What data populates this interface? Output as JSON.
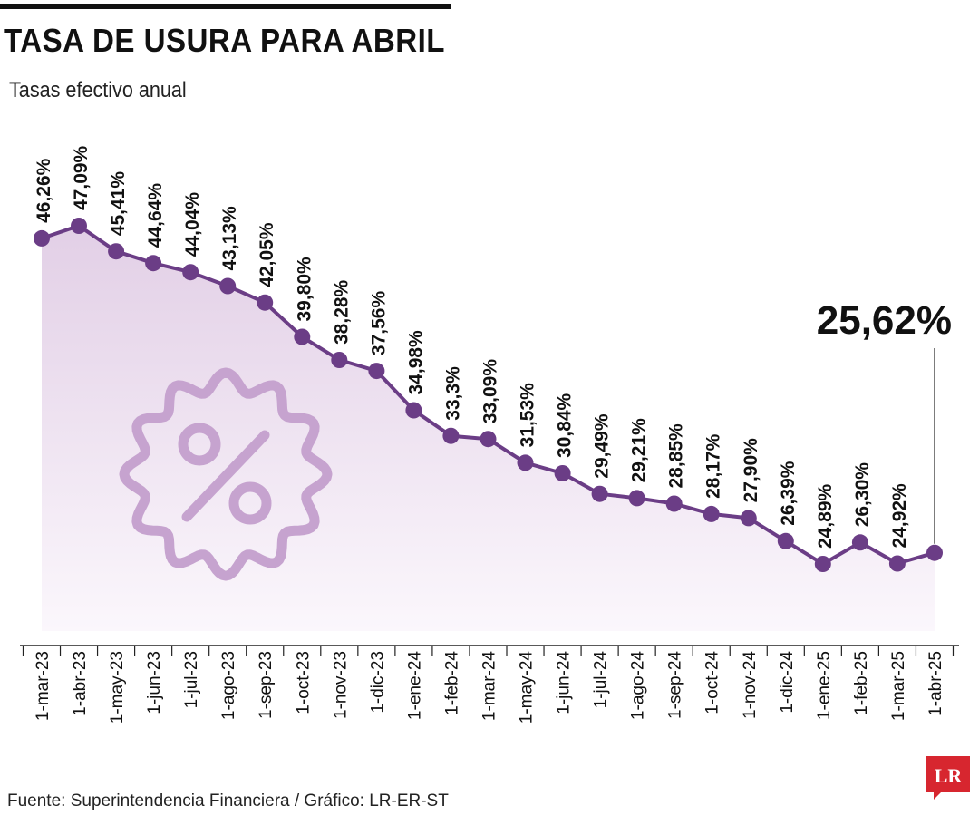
{
  "header": {
    "title": "TASA DE USURA PARA ABRIL",
    "subtitle": "Tasas efectivo anual"
  },
  "footer": {
    "source": "Fuente: Superintendencia Financiera / Gráfico: LR-ER-ST",
    "logo_text": "LR"
  },
  "colors": {
    "line": "#6b3d86",
    "area_top": "#e2cfe6",
    "area_bottom": "#fbf7fc",
    "icon": "#c6a3cf",
    "logo": "#d7262f"
  },
  "icons": [
    "percent-badge-icon",
    "lr-logo-icon"
  ],
  "chart_data": {
    "type": "area",
    "title": "TASA DE USURA PARA ABRIL",
    "subtitle": "Tasas efectivo anual",
    "xlabel": "",
    "ylabel": "",
    "grid": false,
    "legend": "none",
    "ylim": [
      20,
      50
    ],
    "categories": [
      "1-mar-23",
      "1-abr-23",
      "1-may-23",
      "1-jun-23",
      "1-jul-23",
      "1-ago-23",
      "1-sep-23",
      "1-oct-23",
      "1-nov-23",
      "1-dic-23",
      "1-ene-24",
      "1-feb-24",
      "1-mar-24",
      "1-may-24",
      "1-jun-24",
      "1-jul-24",
      "1-ago-24",
      "1-sep-24",
      "1-oct-24",
      "1-nov-24",
      "1-dic-24",
      "1-ene-25",
      "1-feb-25",
      "1-mar-25",
      "1-abr-25"
    ],
    "values": [
      46.26,
      47.09,
      45.41,
      44.64,
      44.04,
      43.13,
      42.05,
      39.8,
      38.28,
      37.56,
      34.98,
      33.3,
      33.09,
      31.53,
      30.84,
      29.49,
      29.21,
      28.85,
      28.17,
      27.9,
      26.39,
      24.89,
      26.3,
      24.92,
      25.62
    ],
    "labels": [
      "46,26%",
      "47,09%",
      "45,41%",
      "44,64%",
      "44,04%",
      "43,13%",
      "42,05%",
      "39,80%",
      "38,28%",
      "37,56%",
      "34,98%",
      "33,3%",
      "33,09%",
      "31,53%",
      "30,84%",
      "29,49%",
      "29,21%",
      "28,85%",
      "28,17%",
      "27,90%",
      "26,39%",
      "24,89%",
      "26,30%",
      "24,92%"
    ],
    "highlight_label": "25,62%"
  }
}
